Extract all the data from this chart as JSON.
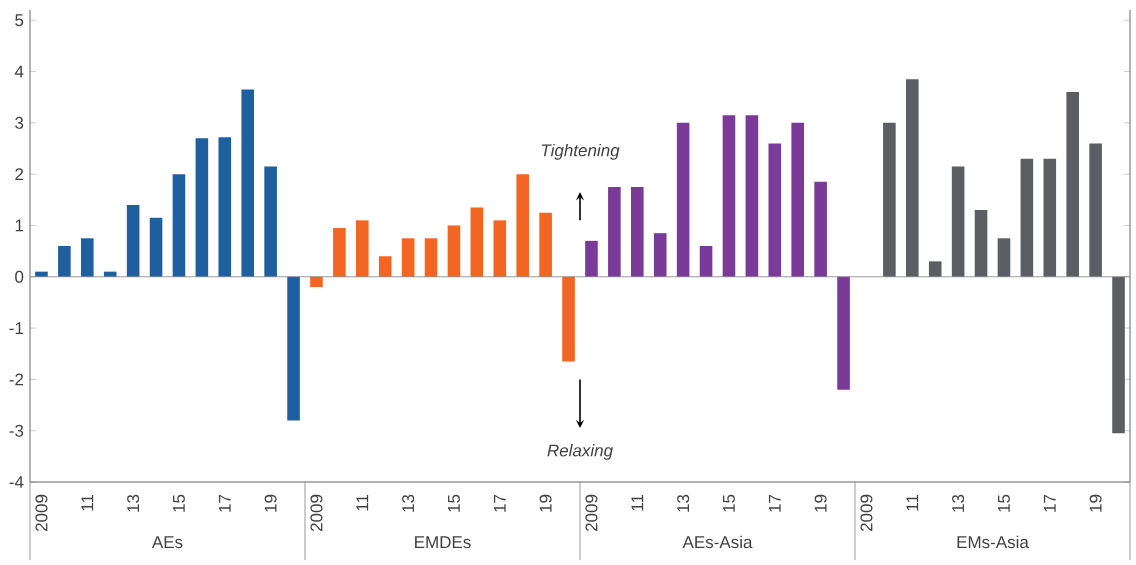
{
  "chart_data": {
    "type": "bar",
    "categories": [
      "2009",
      null,
      "11",
      null,
      "13",
      null,
      "15",
      null,
      "17",
      null,
      "19",
      null,
      "2009",
      null,
      "11",
      null,
      "13",
      null,
      "15",
      null,
      "17",
      null,
      "19",
      null,
      "2009",
      null,
      "11",
      null,
      "13",
      null,
      "15",
      null,
      "17",
      null,
      "19",
      null,
      "2009",
      null,
      "11",
      null,
      "13",
      null,
      "15",
      null,
      "17",
      null,
      "19",
      null
    ],
    "series": [
      {
        "color": "#1f5fa0",
        "values": [
          0.1,
          0.6,
          0.75,
          0.1,
          1.4,
          1.15,
          2.0,
          2.7,
          2.72,
          3.65,
          2.15,
          -2.8,
          null,
          null,
          null,
          null,
          null,
          null,
          null,
          null,
          null,
          null,
          null,
          null,
          null,
          null,
          null,
          null,
          null,
          null,
          null,
          null,
          null,
          null,
          null,
          null,
          null,
          null,
          null,
          null,
          null,
          null,
          null,
          null,
          null,
          null,
          null,
          null
        ]
      },
      {
        "color": "#f26522",
        "values": [
          null,
          null,
          null,
          null,
          null,
          null,
          null,
          null,
          null,
          null,
          null,
          null,
          -0.2,
          0.95,
          1.1,
          0.4,
          0.75,
          0.75,
          1.0,
          1.35,
          1.1,
          2.0,
          1.25,
          -1.65,
          null,
          null,
          null,
          null,
          null,
          null,
          null,
          null,
          null,
          null,
          null,
          null,
          null,
          null,
          null,
          null,
          null,
          null,
          null,
          null,
          null,
          null,
          null,
          null
        ]
      },
      {
        "color": "#7a3b98",
        "values": [
          null,
          null,
          null,
          null,
          null,
          null,
          null,
          null,
          null,
          null,
          null,
          null,
          null,
          null,
          null,
          null,
          null,
          null,
          null,
          null,
          null,
          null,
          null,
          null,
          0.7,
          1.75,
          1.75,
          0.85,
          3.0,
          0.6,
          3.15,
          3.15,
          2.6,
          3.0,
          1.85,
          -2.2,
          null,
          null,
          null,
          null,
          null,
          null,
          null,
          null,
          null,
          null,
          null,
          null
        ]
      },
      {
        "color": "#5b5f63",
        "values": [
          null,
          null,
          null,
          null,
          null,
          null,
          null,
          null,
          null,
          null,
          null,
          null,
          null,
          null,
          null,
          null,
          null,
          null,
          null,
          null,
          null,
          null,
          null,
          null,
          null,
          null,
          null,
          null,
          null,
          null,
          null,
          null,
          null,
          null,
          null,
          null,
          null,
          3.0,
          3.85,
          0.3,
          2.15,
          1.3,
          0.75,
          2.3,
          2.3,
          3.6,
          2.6,
          -3.05
        ]
      }
    ],
    "ylim": [
      -4,
      5.2
    ],
    "yticks": [
      -4,
      -3,
      -2,
      -1,
      0,
      1,
      2,
      3,
      4,
      5
    ],
    "annotations": [
      "Tightening",
      "Relaxing",
      "AEs",
      "EMDEs",
      "AEs-Asia",
      "EMs-Asia"
    ]
  }
}
